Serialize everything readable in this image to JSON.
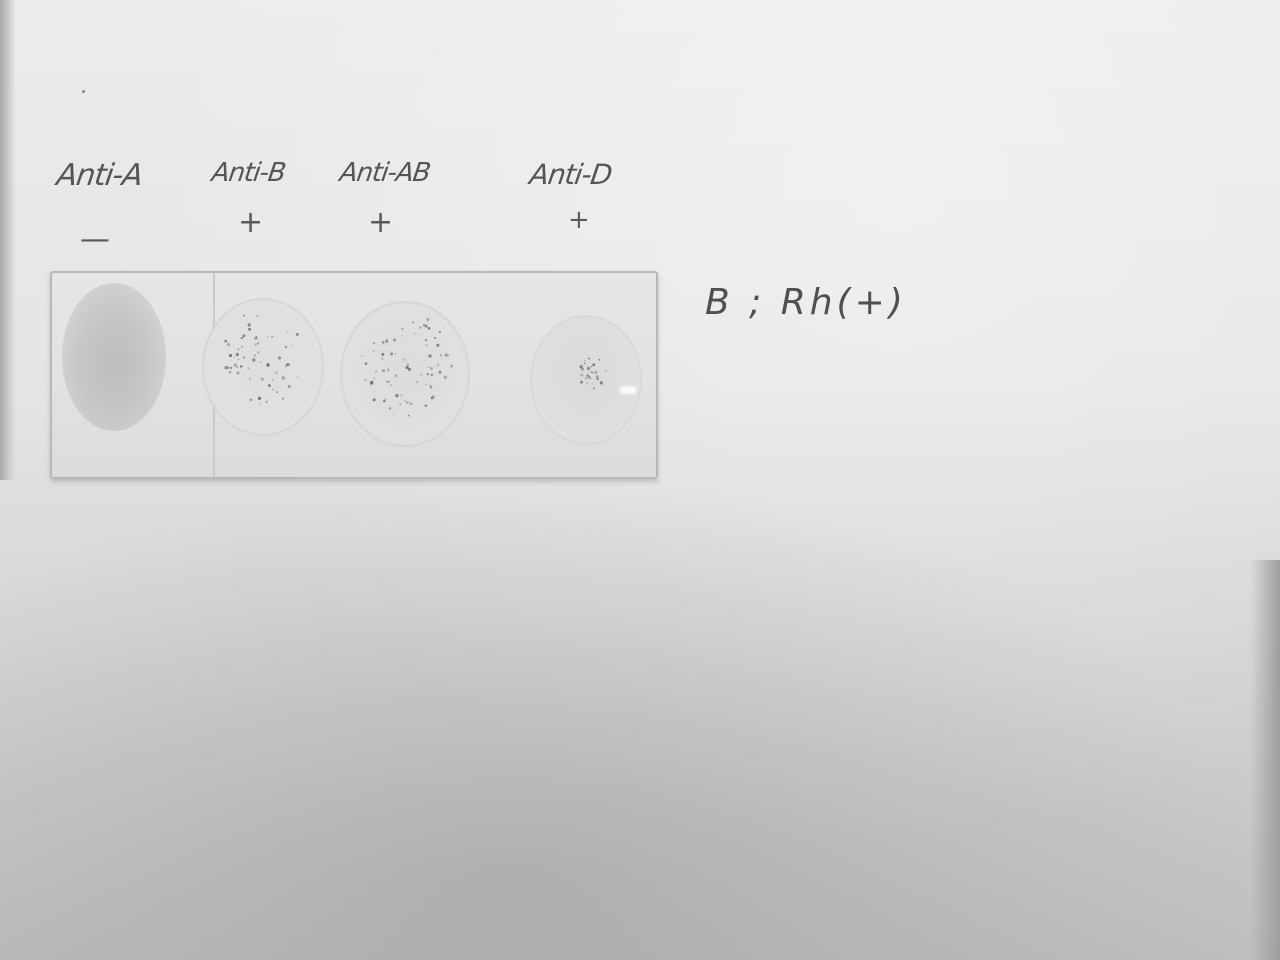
{
  "photo": {
    "subject": "blood-typing-slide",
    "lane_labels": [
      "Anti-A",
      "Anti-B",
      "Anti-AB",
      "Anti-D"
    ],
    "lane_results": [
      "—",
      "+",
      "+",
      "+"
    ],
    "result_note": "B ; Rh(+)",
    "colors": {
      "paper": "#e4e4e4",
      "ink": "#555555",
      "slide_border": "#b8b8b8",
      "agglutination_speck": "#6a6a6a"
    }
  }
}
